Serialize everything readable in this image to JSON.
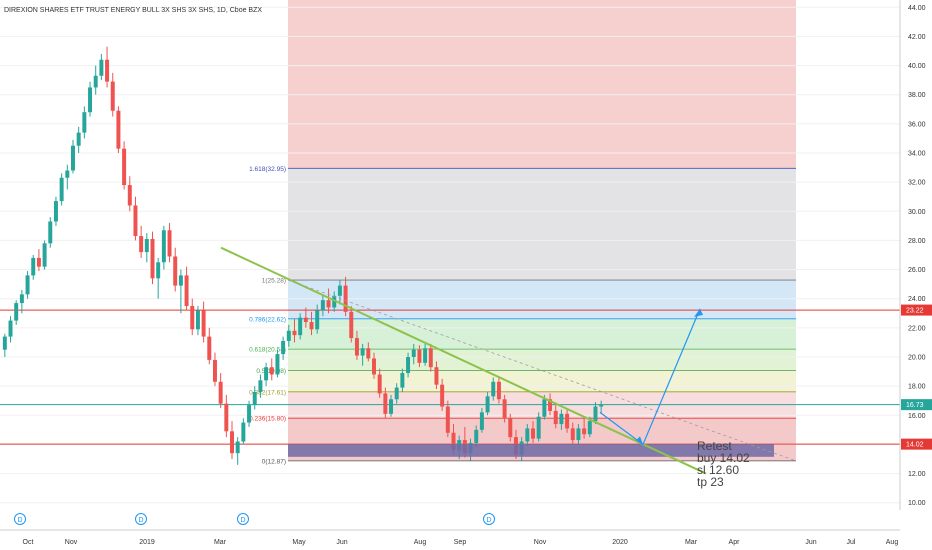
{
  "header": {
    "title": "DIREXION SHARES ETF TRUST ENERGY BULL 3X SHS 3X SHS, 1D, Cboe BZX"
  },
  "colors": {
    "up": "#26a69a",
    "down": "#ef5350",
    "hline": "#e53935",
    "trendline": "#8bc34a",
    "arrow": "#2196f3",
    "current_price_line": "#26a69a",
    "fib_range_bg_top": "#f2b8b8",
    "fib_ext_band": "#c9c9f2",
    "support_box": "#6f6aa6"
  },
  "chart_data": {
    "type": "candlestick",
    "y_axis": {
      "ticks": [
        "44.00",
        "42.00",
        "40.00",
        "38.00",
        "36.00",
        "34.00",
        "32.00",
        "30.00",
        "28.00",
        "26.00",
        "24.00",
        "22.00",
        "20.00",
        "18.00",
        "16.00",
        "14.00",
        "12.00",
        "10.00"
      ],
      "tick_values": [
        44,
        42,
        40,
        38,
        36,
        34,
        32,
        30,
        28,
        26,
        24,
        22,
        20,
        18,
        16,
        14,
        12,
        10
      ],
      "ylim": [
        9.5,
        44.5
      ]
    },
    "x_axis": {
      "ticks": [
        "Oct",
        "Nov",
        "2019",
        "Mar",
        "May",
        "Jun",
        "Aug",
        "Sep",
        "Nov",
        "2020",
        "Mar",
        "Apr",
        "Jun",
        "Jul",
        "Aug"
      ]
    },
    "price_tags": [
      {
        "label": "23.22",
        "value": 23.22,
        "color": "#e53935"
      },
      {
        "label": "16.73",
        "value": 16.73,
        "color": "#26a69a"
      },
      {
        "label": "14.02",
        "value": 14.02,
        "color": "#e53935"
      }
    ],
    "horizontal_lines": [
      {
        "value": 23.22,
        "color": "#e53935"
      },
      {
        "value": 14.02,
        "color": "#e53935"
      },
      {
        "value": 16.73,
        "color": "#26a69a"
      }
    ],
    "fib_levels": [
      {
        "label": "1.618(32.95)",
        "value": 32.95,
        "color": "#3f51b5"
      },
      {
        "label": "1(25.28)",
        "value": 25.28,
        "color": "#777777"
      },
      {
        "label": "0.786(22.62)",
        "value": 22.62,
        "color": "#2196f3"
      },
      {
        "label": "0.618(20.54)",
        "value": 20.54,
        "color": "#4caf50"
      },
      {
        "label": "0.5(19.08)",
        "value": 19.08,
        "color": "#43a047"
      },
      {
        "label": "0.382(17.61)",
        "value": 17.61,
        "color": "#9e9d24"
      },
      {
        "label": "0.236(15.80)",
        "value": 15.8,
        "color": "#e53935"
      },
      {
        "label": "0(12.87)",
        "value": 12.87,
        "color": "#555555"
      }
    ],
    "note": [
      "Retest",
      "buy 14.02",
      "sl   12.60",
      "tp    23"
    ],
    "dividend_marker": "D",
    "candles": [
      [
        20.5,
        21.6,
        20.0,
        21.4
      ],
      [
        21.4,
        22.8,
        21.0,
        22.5
      ],
      [
        22.5,
        23.9,
        22.2,
        23.7
      ],
      [
        23.7,
        24.6,
        23.0,
        24.3
      ],
      [
        24.3,
        25.9,
        24.0,
        25.6
      ],
      [
        25.6,
        27.0,
        25.3,
        26.8
      ],
      [
        26.8,
        27.4,
        25.9,
        26.2
      ],
      [
        26.2,
        28.0,
        26.0,
        27.8
      ],
      [
        27.8,
        29.6,
        27.5,
        29.3
      ],
      [
        29.3,
        31.0,
        29.0,
        30.7
      ],
      [
        30.7,
        32.6,
        30.4,
        32.3
      ],
      [
        32.3,
        33.2,
        31.5,
        32.8
      ],
      [
        32.8,
        34.9,
        32.6,
        34.5
      ],
      [
        34.5,
        35.8,
        34.0,
        35.4
      ],
      [
        35.4,
        37.2,
        35.0,
        36.8
      ],
      [
        36.8,
        38.9,
        36.5,
        38.5
      ],
      [
        38.5,
        40.0,
        38.0,
        39.3
      ],
      [
        39.3,
        40.8,
        39.0,
        40.4
      ],
      [
        40.4,
        41.3,
        38.5,
        38.9
      ],
      [
        38.9,
        39.5,
        36.5,
        36.9
      ],
      [
        36.9,
        37.2,
        34.0,
        34.3
      ],
      [
        34.3,
        34.8,
        31.5,
        31.8
      ],
      [
        31.8,
        32.4,
        30.0,
        30.4
      ],
      [
        30.4,
        31.0,
        28.0,
        28.3
      ],
      [
        28.3,
        29.0,
        26.8,
        27.2
      ],
      [
        27.2,
        28.5,
        26.5,
        28.1
      ],
      [
        28.1,
        28.6,
        25.0,
        25.4
      ],
      [
        25.4,
        26.8,
        24.0,
        26.5
      ],
      [
        26.5,
        29.0,
        26.0,
        28.7
      ],
      [
        28.7,
        29.2,
        26.5,
        26.9
      ],
      [
        26.9,
        27.5,
        24.5,
        24.9
      ],
      [
        24.9,
        26.0,
        23.0,
        25.6
      ],
      [
        25.6,
        26.2,
        23.2,
        23.5
      ],
      [
        23.5,
        24.0,
        21.5,
        21.9
      ],
      [
        21.9,
        23.5,
        21.5,
        23.2
      ],
      [
        23.2,
        23.8,
        21.0,
        21.4
      ],
      [
        21.4,
        22.0,
        19.5,
        19.8
      ],
      [
        19.8,
        20.3,
        18.0,
        18.3
      ],
      [
        18.3,
        18.9,
        16.5,
        16.8
      ],
      [
        16.8,
        17.4,
        14.5,
        14.9
      ],
      [
        14.9,
        15.6,
        13.0,
        13.4
      ],
      [
        13.4,
        14.5,
        12.6,
        14.2
      ],
      [
        14.2,
        15.8,
        14.0,
        15.5
      ],
      [
        15.5,
        17.0,
        15.2,
        16.7
      ],
      [
        16.7,
        18.0,
        16.4,
        17.6
      ],
      [
        17.6,
        18.8,
        17.2,
        18.4
      ],
      [
        18.4,
        19.6,
        18.0,
        19.3
      ],
      [
        19.3,
        19.9,
        18.4,
        18.8
      ],
      [
        18.8,
        20.5,
        18.6,
        20.2
      ],
      [
        20.2,
        21.4,
        19.8,
        21.1
      ],
      [
        21.1,
        22.2,
        20.7,
        21.8
      ],
      [
        21.8,
        22.6,
        21.0,
        21.5
      ],
      [
        21.5,
        23.0,
        21.2,
        22.7
      ],
      [
        22.7,
        23.4,
        22.0,
        22.4
      ],
      [
        22.4,
        23.1,
        21.5,
        21.9
      ],
      [
        21.9,
        23.6,
        21.6,
        23.2
      ],
      [
        23.2,
        24.2,
        22.8,
        23.9
      ],
      [
        23.9,
        24.7,
        23.0,
        23.4
      ],
      [
        23.4,
        24.5,
        23.1,
        24.2
      ],
      [
        24.2,
        25.3,
        23.6,
        24.9
      ],
      [
        24.9,
        25.5,
        22.8,
        23.1
      ],
      [
        23.1,
        23.5,
        21.0,
        21.3
      ],
      [
        21.3,
        21.8,
        19.8,
        20.1
      ],
      [
        20.1,
        20.9,
        19.4,
        20.6
      ],
      [
        20.6,
        21.0,
        19.7,
        19.9
      ],
      [
        19.9,
        20.3,
        18.5,
        18.8
      ],
      [
        18.8,
        19.2,
        17.2,
        17.5
      ],
      [
        17.5,
        17.9,
        15.8,
        16.1
      ],
      [
        16.1,
        17.4,
        15.9,
        17.1
      ],
      [
        17.1,
        18.2,
        16.8,
        17.9
      ],
      [
        17.9,
        19.2,
        17.6,
        18.9
      ],
      [
        18.9,
        20.3,
        18.6,
        20.0
      ],
      [
        20.0,
        20.9,
        19.5,
        20.5
      ],
      [
        20.5,
        20.8,
        19.3,
        19.6
      ],
      [
        19.6,
        20.9,
        19.4,
        20.6
      ],
      [
        20.6,
        20.9,
        19.0,
        19.3
      ],
      [
        19.3,
        19.7,
        17.8,
        18.1
      ],
      [
        18.1,
        18.5,
        16.3,
        16.6
      ],
      [
        16.6,
        17.0,
        14.5,
        14.8
      ],
      [
        14.8,
        15.4,
        13.3,
        13.6
      ],
      [
        13.6,
        14.6,
        13.0,
        14.3
      ],
      [
        14.3,
        15.2,
        13.1,
        13.4
      ],
      [
        13.4,
        14.4,
        12.9,
        14.1
      ],
      [
        14.1,
        15.3,
        13.8,
        15.0
      ],
      [
        15.0,
        16.5,
        14.8,
        16.2
      ],
      [
        16.2,
        17.6,
        16.0,
        17.3
      ],
      [
        17.3,
        18.6,
        17.0,
        18.3
      ],
      [
        18.3,
        18.7,
        16.8,
        17.1
      ],
      [
        17.1,
        17.4,
        15.5,
        15.8
      ],
      [
        15.8,
        16.1,
        14.2,
        14.5
      ],
      [
        14.5,
        15.0,
        13.0,
        13.3
      ],
      [
        13.3,
        14.5,
        12.9,
        14.2
      ],
      [
        14.2,
        15.4,
        13.9,
        15.1
      ],
      [
        15.1,
        15.6,
        14.1,
        14.4
      ],
      [
        14.4,
        16.2,
        14.2,
        15.9
      ],
      [
        15.9,
        17.4,
        15.7,
        17.1
      ],
      [
        17.1,
        17.5,
        16.0,
        16.3
      ],
      [
        16.3,
        16.7,
        15.1,
        15.4
      ],
      [
        15.4,
        16.4,
        15.0,
        16.1
      ],
      [
        16.1,
        16.4,
        14.8,
        15.1
      ],
      [
        15.1,
        15.5,
        14.0,
        14.3
      ],
      [
        14.3,
        15.4,
        14.0,
        15.1
      ],
      [
        15.1,
        15.9,
        14.4,
        14.7
      ],
      [
        14.7,
        15.9,
        14.5,
        15.6
      ],
      [
        15.6,
        16.9,
        15.4,
        16.6
      ],
      [
        16.6,
        17.0,
        16.1,
        16.73
      ]
    ]
  }
}
